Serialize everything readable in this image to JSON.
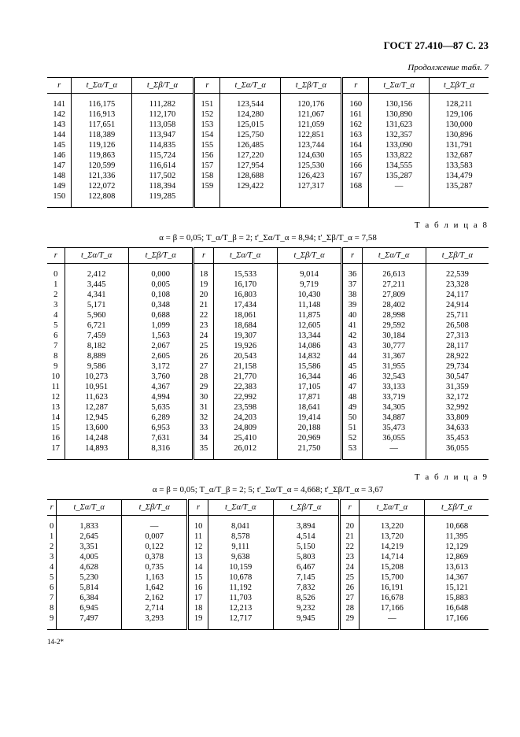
{
  "page_header": "ГОСТ 27.410—87 С. 23",
  "cont_label": "Продолжение табл. 7",
  "footer": "14-2*",
  "col_headers": [
    "r",
    "t_Σα/T_α",
    "t_Σβ/T_α",
    "r",
    "t_Σα/T_α",
    "t_Σβ/T_α",
    "r",
    "t_Σα/T_α",
    "t_Σβ/T_α"
  ],
  "table7": {
    "rows": [
      [
        "141",
        "116,175",
        "111,282",
        "151",
        "123,544",
        "120,176",
        "160",
        "130,156",
        "128,211"
      ],
      [
        "142",
        "116,913",
        "112,170",
        "152",
        "124,280",
        "121,067",
        "161",
        "130,890",
        "129,106"
      ],
      [
        "143",
        "117,651",
        "113,058",
        "153",
        "125,015",
        "121,059",
        "162",
        "131,623",
        "130,000"
      ],
      [
        "144",
        "118,389",
        "113,947",
        "154",
        "125,750",
        "122,851",
        "163",
        "132,357",
        "130,896"
      ],
      [
        "145",
        "119,126",
        "114,835",
        "155",
        "126,485",
        "123,744",
        "164",
        "133,090",
        "131,791"
      ],
      [
        "146",
        "119,863",
        "115,724",
        "156",
        "127,220",
        "124,630",
        "165",
        "133,822",
        "132,687"
      ],
      [
        "147",
        "120,599",
        "116,614",
        "157",
        "127,954",
        "125,530",
        "166",
        "134,555",
        "133,583"
      ],
      [
        "148",
        "121,336",
        "117,502",
        "158",
        "128,688",
        "126,423",
        "167",
        "135,287",
        "134,479"
      ],
      [
        "149",
        "122,072",
        "118,394",
        "159",
        "129,422",
        "127,317",
        "168",
        "—",
        "135,287"
      ],
      [
        "150",
        "122,808",
        "119,285",
        "",
        "",
        "",
        "",
        "",
        ""
      ]
    ]
  },
  "table8": {
    "label": "Т а б л и ц а   8",
    "formula": "α = β = 0,05;  T_α/T_β = 2;  t'_Σα/T_α = 8,94;  t'_Σβ/T_α = 7,58",
    "rows": [
      [
        "0",
        "2,412",
        "0,000",
        "18",
        "15,533",
        "9,014",
        "36",
        "26,613",
        "22,539"
      ],
      [
        "1",
        "3,445",
        "0,005",
        "19",
        "16,170",
        "9,719",
        "37",
        "27,211",
        "23,328"
      ],
      [
        "2",
        "4,341",
        "0,108",
        "20",
        "16,803",
        "10,430",
        "38",
        "27,809",
        "24,117"
      ],
      [
        "3",
        "5,171",
        "0,348",
        "21",
        "17,434",
        "11,148",
        "39",
        "28,402",
        "24,914"
      ],
      [
        "4",
        "5,960",
        "0,688",
        "22",
        "18,061",
        "11,875",
        "40",
        "28,998",
        "25,711"
      ],
      [
        "5",
        "6,721",
        "1,099",
        "23",
        "18,684",
        "12,605",
        "41",
        "29,592",
        "26,508"
      ],
      [
        "6",
        "7,459",
        "1,563",
        "24",
        "19,307",
        "13,344",
        "42",
        "30,184",
        "27,313"
      ],
      [
        "7",
        "8,182",
        "2,067",
        "25",
        "19,926",
        "14,086",
        "43",
        "30,777",
        "28,117"
      ],
      [
        "8",
        "8,889",
        "2,605",
        "26",
        "20,543",
        "14,832",
        "44",
        "31,367",
        "28,922"
      ],
      [
        "9",
        "9,586",
        "3,172",
        "27",
        "21,158",
        "15,586",
        "45",
        "31,955",
        "29,734"
      ],
      [
        "10",
        "10,273",
        "3,760",
        "28",
        "21,770",
        "16,344",
        "46",
        "32,543",
        "30,547"
      ],
      [
        "11",
        "10,951",
        "4,367",
        "29",
        "22,383",
        "17,105",
        "47",
        "33,133",
        "31,359"
      ],
      [
        "12",
        "11,623",
        "4,994",
        "30",
        "22,992",
        "17,871",
        "48",
        "33,719",
        "32,172"
      ],
      [
        "13",
        "12,287",
        "5,635",
        "31",
        "23,598",
        "18,641",
        "49",
        "34,305",
        "32,992"
      ],
      [
        "14",
        "12,945",
        "6,289",
        "32",
        "24,203",
        "19,414",
        "50",
        "34,887",
        "33,809"
      ],
      [
        "15",
        "13,600",
        "6,953",
        "33",
        "24,809",
        "20,188",
        "51",
        "35,473",
        "34,633"
      ],
      [
        "16",
        "14,248",
        "7,631",
        "34",
        "25,410",
        "20,969",
        "52",
        "36,055",
        "35,453"
      ],
      [
        "17",
        "14,893",
        "8,316",
        "35",
        "26,012",
        "21,750",
        "53",
        "—",
        "36,055"
      ]
    ]
  },
  "table9": {
    "label": "Т а б л и ц а   9",
    "formula": "α = β = 0,05;  T_α/T_β = 2; 5;  t'_Σα/T_α = 4,668;  t'_Σβ/T_α = 3,67",
    "rows": [
      [
        "0",
        "1,833",
        "—",
        "10",
        "8,041",
        "3,894",
        "20",
        "13,220",
        "10,668"
      ],
      [
        "1",
        "2,645",
        "0,007",
        "11",
        "8,578",
        "4,514",
        "21",
        "13,720",
        "11,395"
      ],
      [
        "2",
        "3,351",
        "0,122",
        "12",
        "9,111",
        "5,150",
        "22",
        "14,219",
        "12,129"
      ],
      [
        "3",
        "4,005",
        "0,378",
        "13",
        "9,638",
        "5,803",
        "23",
        "14,714",
        "12,869"
      ],
      [
        "4",
        "4,628",
        "0,735",
        "14",
        "10,159",
        "6,467",
        "24",
        "15,208",
        "13,613"
      ],
      [
        "5",
        "5,230",
        "1,163",
        "15",
        "10,678",
        "7,145",
        "25",
        "15,700",
        "14,367"
      ],
      [
        "6",
        "5,814",
        "1,642",
        "16",
        "11,192",
        "7,832",
        "26",
        "16,191",
        "15,121"
      ],
      [
        "7",
        "6,384",
        "2,162",
        "17",
        "11,703",
        "8,526",
        "27",
        "16,678",
        "15,883"
      ],
      [
        "8",
        "6,945",
        "2,714",
        "18",
        "12,213",
        "9,232",
        "28",
        "17,166",
        "16,648"
      ],
      [
        "9",
        "7,497",
        "3,293",
        "19",
        "12,717",
        "9,945",
        "29",
        "—",
        "17,166"
      ]
    ]
  }
}
